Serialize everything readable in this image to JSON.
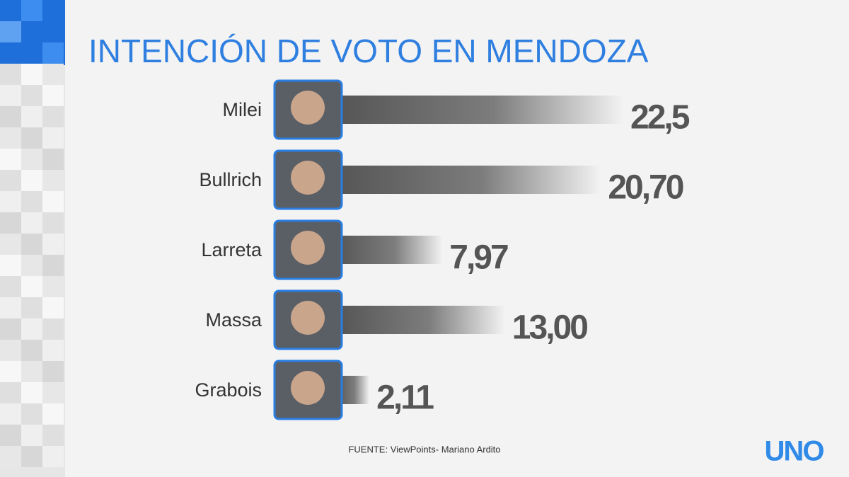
{
  "chart_data": {
    "type": "bar",
    "orientation": "horizontal",
    "title": "INTENCIÓN DE VOTO EN MENDOZA",
    "categories": [
      "Milei",
      "Bullrich",
      "Larreta",
      "Massa",
      "Grabois"
    ],
    "values": [
      22.5,
      20.7,
      7.97,
      13,
      2.11
    ],
    "value_labels": [
      "22,5",
      "20,70",
      "7,97",
      "13,00",
      "2,11"
    ],
    "color": "#555555",
    "source": "FUENTE: ViewPoints- Mariano Ardito",
    "logo": "UNO"
  }
}
